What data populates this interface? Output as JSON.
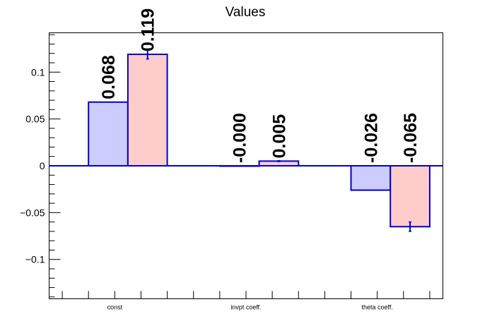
{
  "chart_data": {
    "type": "bar",
    "title": "Values",
    "xlabel": "",
    "ylabel": "",
    "categories": [
      "const",
      "invpt coeff.",
      "theta coeff."
    ],
    "ylim": [
      -0.142,
      0.142
    ],
    "yticks": [
      {
        "value": 0.1,
        "label": "0.1"
      },
      {
        "value": 0.05,
        "label": "0.05"
      },
      {
        "value": 0,
        "label": "0"
      },
      {
        "value": -0.05,
        "label": "−0.05"
      },
      {
        "value": -0.1,
        "label": "−0.1"
      }
    ],
    "grid": false,
    "series": [
      {
        "fill": "#ccccff",
        "stroke": "#0000cc",
        "values": [
          0.068,
          0.0,
          -0.026
        ],
        "value_labels": [
          "0.068",
          "-0.000",
          "-0.026"
        ],
        "errors": [
          0,
          0,
          0
        ]
      },
      {
        "fill": "#ffcccc",
        "stroke": "#0000cc",
        "values": [
          0.119,
          0.005,
          -0.065
        ],
        "value_labels": [
          "0.119",
          "0.005",
          "-0.065"
        ],
        "errors": [
          0.005,
          0.0005,
          0.005
        ]
      }
    ]
  }
}
